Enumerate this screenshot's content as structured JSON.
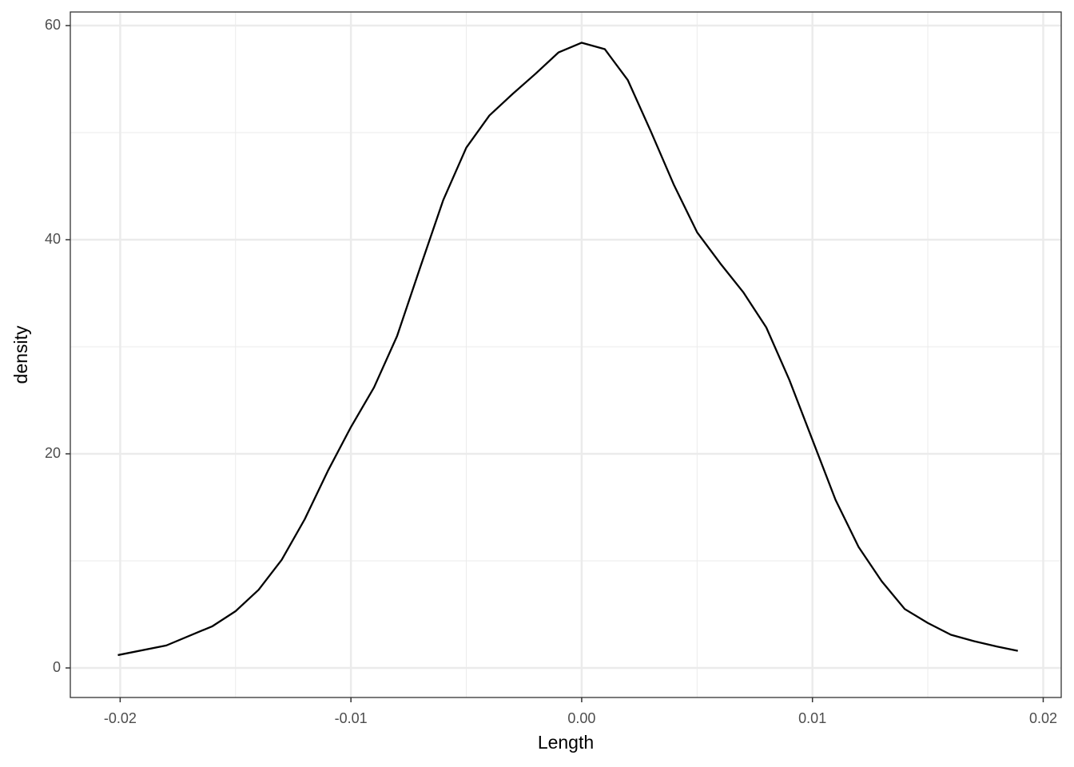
{
  "chart_data": {
    "type": "line",
    "x_label": "Length",
    "y_label": "density",
    "x": [
      -0.0201,
      -0.018,
      -0.016,
      -0.015,
      -0.014,
      -0.013,
      -0.012,
      -0.011,
      -0.01,
      -0.009,
      -0.008,
      -0.007,
      -0.006,
      -0.005,
      -0.004,
      -0.003,
      -0.002,
      -0.001,
      0.0,
      0.001,
      0.002,
      0.003,
      0.004,
      0.005,
      0.006,
      0.007,
      0.008,
      0.009,
      0.01,
      0.011,
      0.012,
      0.013,
      0.014,
      0.015,
      0.016,
      0.017,
      0.018,
      0.0189
    ],
    "series": [
      {
        "color": "#000000",
        "values": [
          1.2,
          2.1,
          3.9,
          5.3,
          7.3,
          10.1,
          13.9,
          18.4,
          22.5,
          26.2,
          31.0,
          37.4,
          43.7,
          48.6,
          51.6,
          53.6,
          55.5,
          57.5,
          58.4,
          57.8,
          54.9,
          50.1,
          45.1,
          40.7,
          37.8,
          35.1,
          31.8,
          26.9,
          21.3,
          15.7,
          11.3,
          8.1,
          5.5,
          4.2,
          3.1,
          2.5,
          2.0,
          1.6
        ]
      }
    ],
    "xlim": [
      -0.02216,
      0.02078
    ],
    "ylim": [
      -2.76,
      61.27
    ],
    "xticks": [
      -0.02,
      -0.01,
      {
        "value": 0,
        "label": "0.00"
      },
      0.01,
      0.02
    ],
    "yticks": [
      0,
      20,
      40,
      60
    ],
    "x_minor_gridlines": [
      -0.015,
      -0.005,
      0.005,
      0.015
    ],
    "y_minor_gridlines": [
      10,
      30,
      50
    ],
    "grid": true
  }
}
